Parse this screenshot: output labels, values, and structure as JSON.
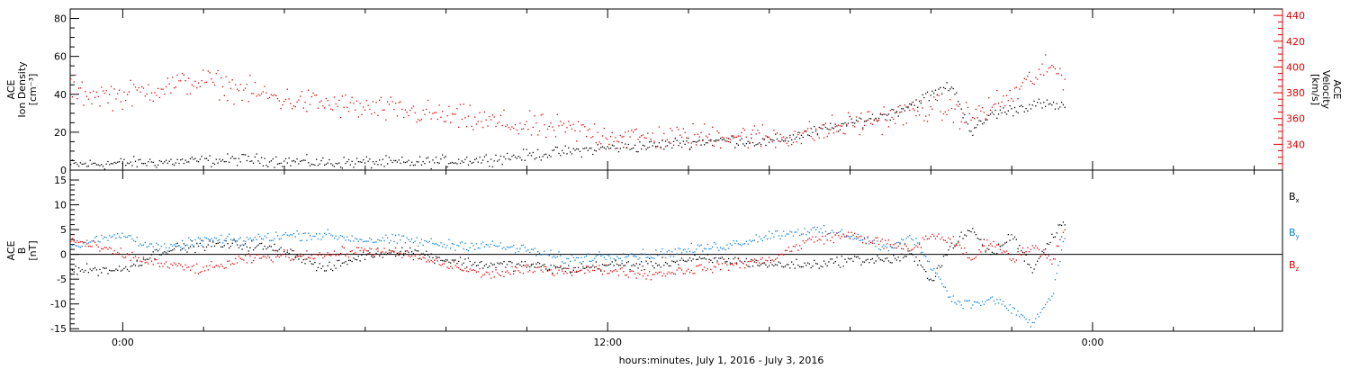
{
  "chart_data": [
    {
      "type": "scatter",
      "panel": "top",
      "xlabel": "hours:minutes, July  1, 2016 - July  3, 2016",
      "ylabel_left": [
        "ACE",
        "Ion Density",
        "[cm⁻³]"
      ],
      "ylabel_right": [
        "ACE",
        "Velocity",
        "[km/s]"
      ],
      "x_unit": "hours since July 2, 2016 00:00",
      "xlim": [
        -1.3,
        28.7
      ],
      "x_ticks": [
        0,
        12,
        24
      ],
      "x_tick_labels": [
        "0:00",
        "12:00",
        "0:00"
      ],
      "ylim_left": [
        0,
        85
      ],
      "y_ticks_left": [
        0,
        20,
        40,
        60,
        80
      ],
      "y_tick_labels_left": [
        "0",
        "20",
        "40",
        "60",
        "80"
      ],
      "ylim_right": [
        320,
        445
      ],
      "y_ticks_right": [
        340,
        360,
        380,
        400,
        420,
        440
      ],
      "y_tick_labels_right": [
        "340",
        "360",
        "380",
        "400",
        "420",
        "440"
      ],
      "series": [
        {
          "axis": "left",
          "color": "#000000",
          "x": [
            -1.3,
            0,
            1,
            2,
            3,
            4,
            5,
            6,
            7,
            8,
            9,
            10,
            11,
            12,
            13,
            14,
            15,
            16,
            17,
            18,
            19,
            20,
            20.5,
            21,
            21.5,
            22,
            22.5,
            23.3
          ],
          "y": [
            3,
            4,
            4.5,
            5,
            6,
            5,
            4,
            4.5,
            4,
            5,
            6,
            8,
            10,
            12,
            13,
            15,
            16,
            15,
            20,
            25,
            30,
            40,
            45,
            20,
            30,
            32,
            35,
            34
          ]
        },
        {
          "axis": "right",
          "color": "#e00000",
          "x": [
            -1.3,
            -1,
            0,
            1,
            2,
            3,
            4,
            5,
            6,
            7,
            8,
            9,
            10,
            11,
            12,
            13,
            14,
            15,
            16,
            17,
            18,
            19,
            20,
            20.5,
            21,
            22,
            22.5,
            23,
            23.3
          ],
          "y": [
            385,
            380,
            378,
            385,
            390,
            382,
            375,
            372,
            368,
            366,
            362,
            358,
            354,
            352,
            348,
            345,
            346,
            348,
            346,
            348,
            356,
            362,
            368,
            366,
            362,
            378,
            392,
            400,
            392
          ]
        }
      ]
    },
    {
      "type": "scatter",
      "panel": "bottom",
      "xlabel": "hours:minutes, July  1, 2016 - July  3, 2016",
      "ylabel_left": [
        "ACE",
        "B",
        "[nT]"
      ],
      "xlim": [
        -1.3,
        28.7
      ],
      "x_ticks": [
        0,
        12,
        24
      ],
      "x_tick_labels": [
        "0:00",
        "12:00",
        "0:00"
      ],
      "ylim": [
        -15.5,
        17
      ],
      "y_ticks": [
        -15,
        -10,
        -5,
        0,
        5,
        10,
        15
      ],
      "y_tick_labels": [
        "-15",
        "-10",
        "-5",
        "0",
        "5",
        "10",
        "15"
      ],
      "zero_line": true,
      "legend": [
        {
          "label": "B",
          "sub": "x",
          "color": "#000000"
        },
        {
          "label": "B",
          "sub": "y",
          "color": "#0a7fd8"
        },
        {
          "label": "B",
          "sub": "z",
          "color": "#e00000"
        }
      ],
      "series": [
        {
          "name": "Bx",
          "color": "#000000",
          "x": [
            -1.3,
            0,
            1,
            2,
            3,
            4,
            5,
            6,
            7,
            8,
            9,
            10,
            11,
            12,
            13,
            14,
            15,
            16,
            17,
            18,
            19,
            19.5,
            20,
            20.5,
            21,
            21.5,
            22,
            22.5,
            23,
            23.3
          ],
          "y": [
            -3,
            -3,
            1,
            2,
            2,
            1,
            -3,
            0,
            1,
            -1,
            -2,
            -2,
            -3,
            -2,
            -2,
            -1,
            -1,
            -2,
            -2,
            -1,
            -1,
            0,
            -5,
            2,
            5,
            0,
            4,
            -3,
            4,
            7
          ]
        },
        {
          "name": "By",
          "color": "#0a7fd8",
          "x": [
            -1.3,
            0,
            1,
            2,
            3,
            4,
            5,
            6,
            7,
            8,
            9,
            10,
            11,
            12,
            13,
            14,
            15,
            16,
            17,
            18,
            19,
            19.5,
            20,
            20.5,
            21,
            21.5,
            22,
            22.5,
            23,
            23.3
          ],
          "y": [
            2,
            4,
            1,
            3,
            3,
            4,
            4,
            3,
            3,
            2,
            2,
            1,
            -1,
            0,
            0,
            1,
            2,
            4,
            5,
            4,
            1,
            4,
            -2,
            -9,
            -10,
            -9,
            -11,
            -14,
            -8,
            4
          ]
        },
        {
          "name": "Bz",
          "color": "#e00000",
          "x": [
            -1.3,
            0,
            1,
            2,
            3,
            4,
            5,
            6,
            7,
            8,
            9,
            10,
            11,
            12,
            13,
            14,
            15,
            16,
            17,
            18,
            19,
            19.5,
            20,
            20.5,
            21,
            21.5,
            22,
            22.5,
            23,
            23.3
          ],
          "y": [
            3,
            0,
            -2,
            -3,
            -1,
            0,
            0,
            1,
            0,
            -2,
            -4,
            -3,
            -3,
            -3,
            -4,
            -3,
            -2,
            -1,
            3,
            4,
            2,
            1,
            4,
            3,
            -1,
            3,
            -1,
            2,
            -1,
            5
          ]
        }
      ]
    }
  ]
}
